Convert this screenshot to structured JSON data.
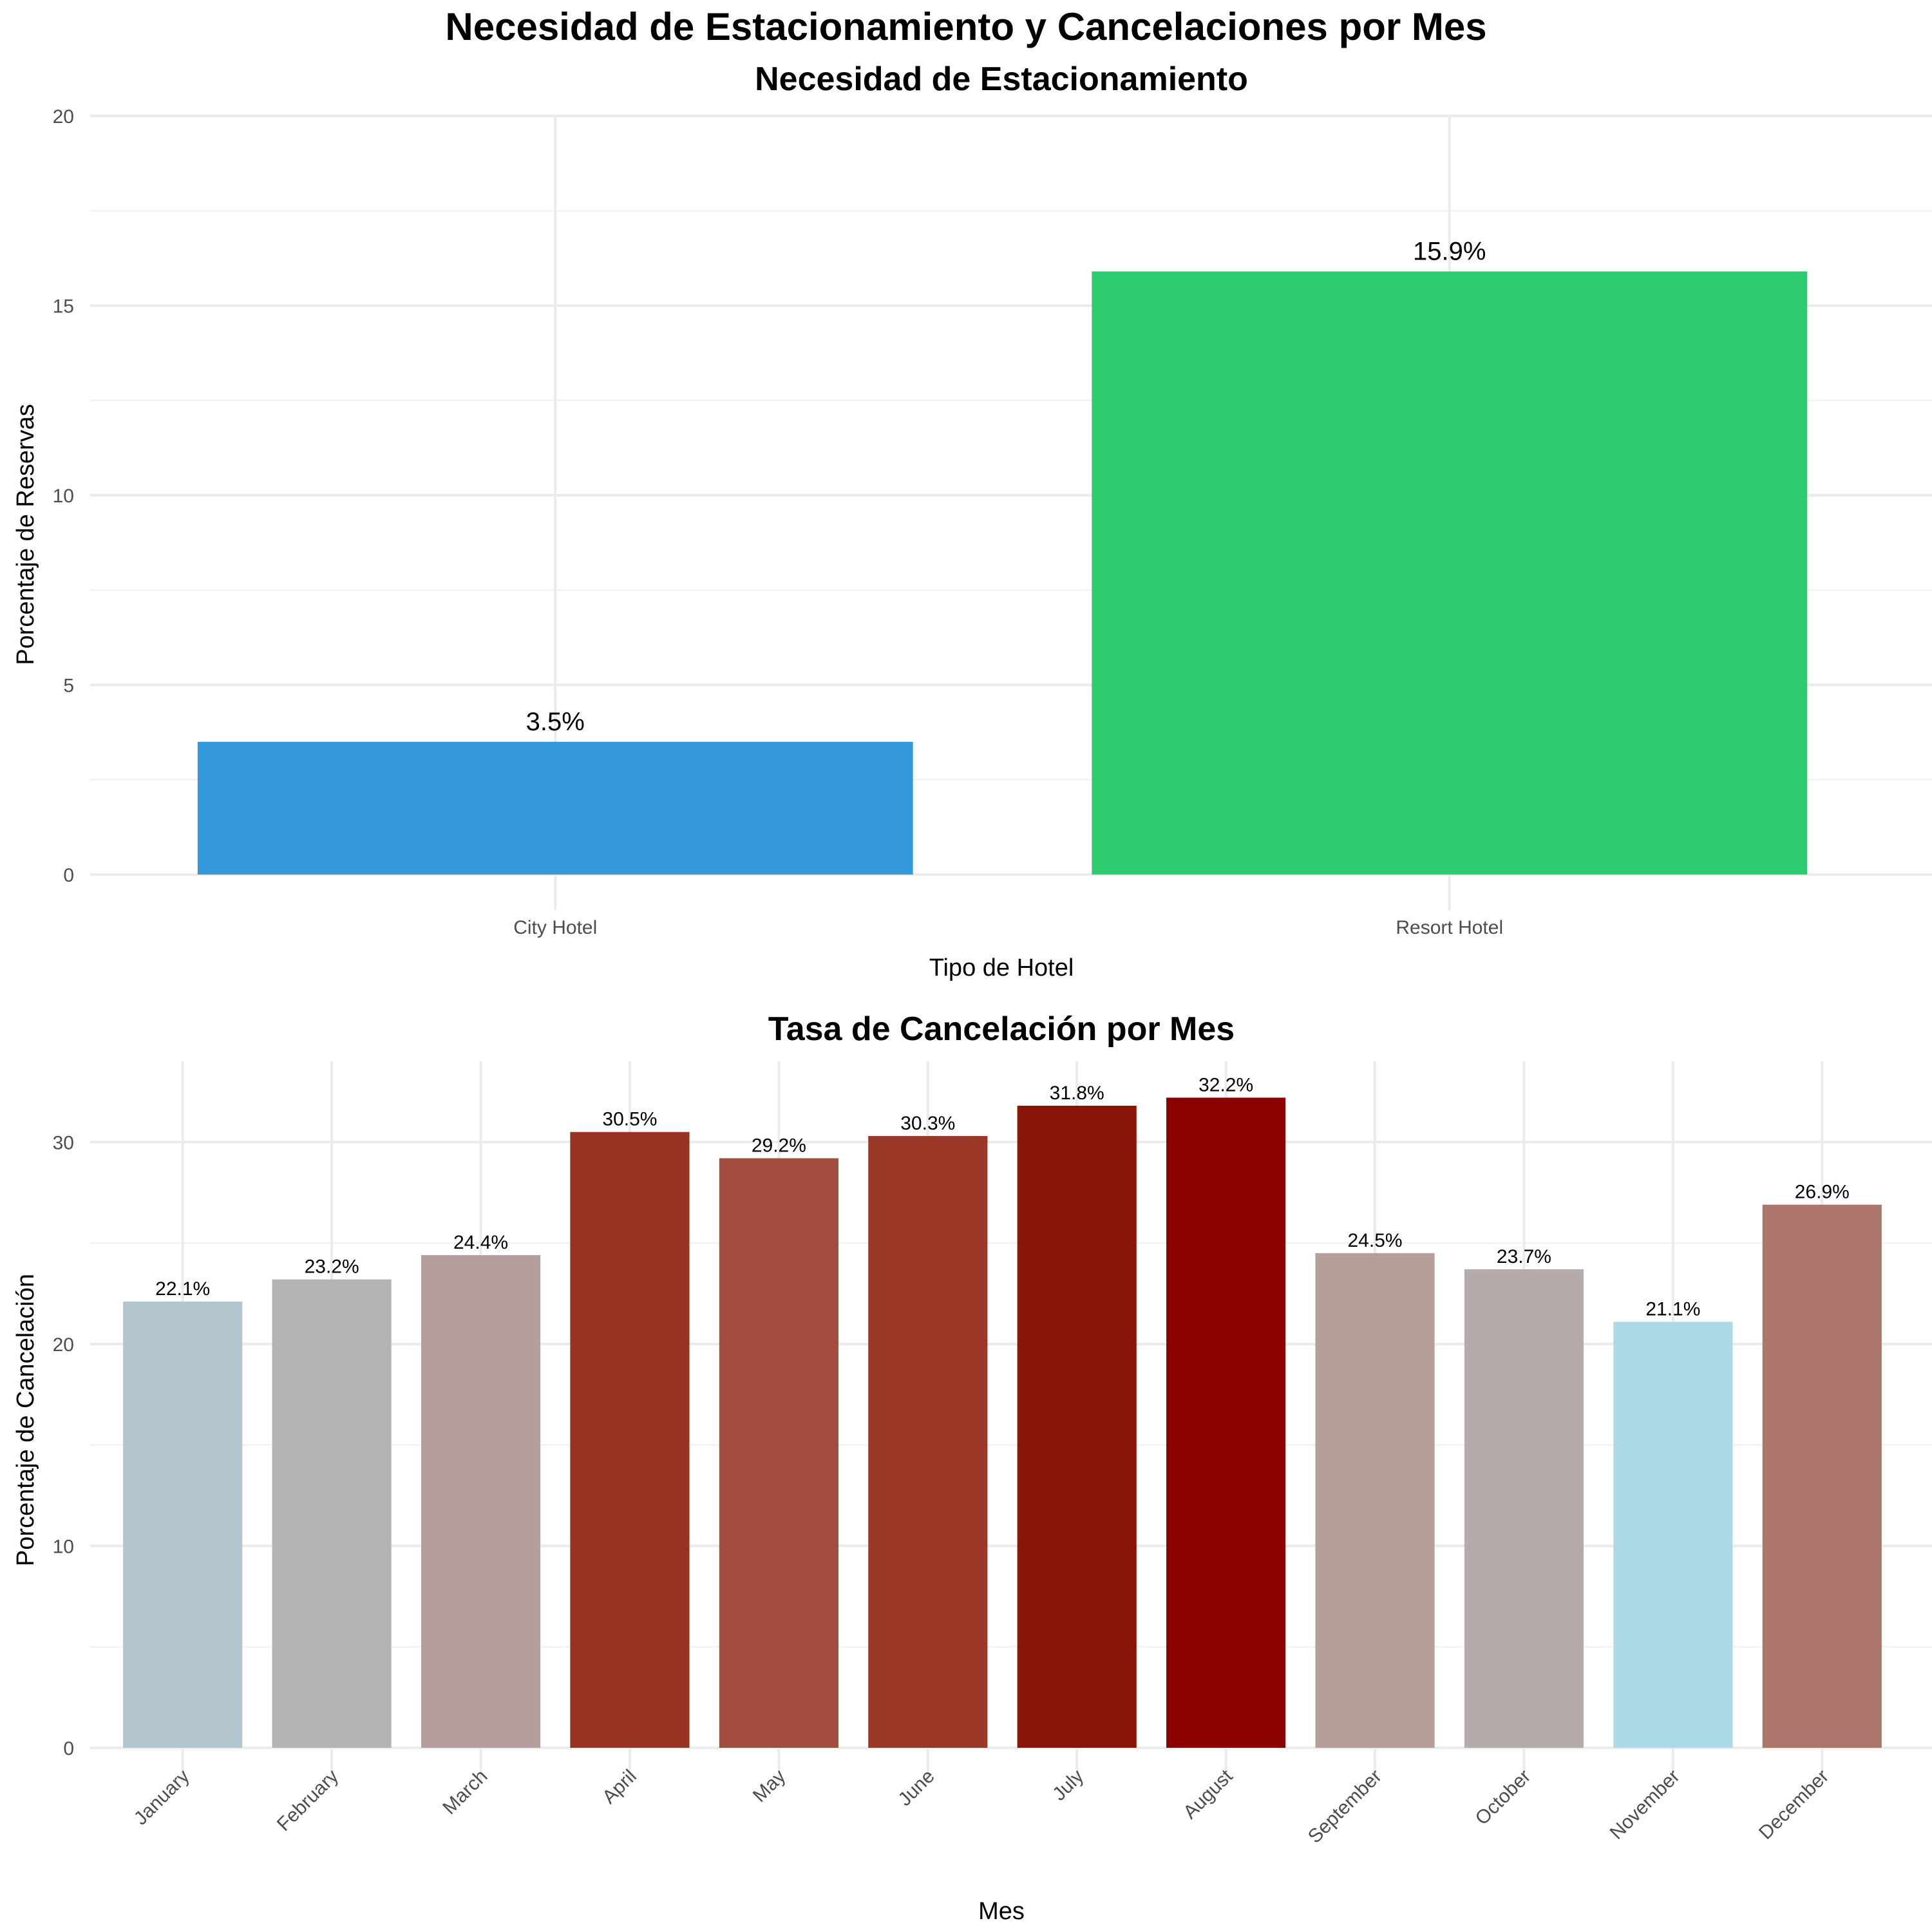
{
  "title": "Necesidad de Estacionamiento y Cancelaciones por Mes",
  "chart_data": [
    {
      "type": "bar",
      "title": "Necesidad de Estacionamiento",
      "xlabel": "Tipo de Hotel",
      "ylabel": "Porcentaje de Reservas",
      "ylim": [
        0,
        20
      ],
      "yticks": [
        0,
        5,
        10,
        15,
        20
      ],
      "grid": true,
      "legend": "none",
      "categories": [
        "City Hotel",
        "Resort Hotel"
      ],
      "values": [
        3.5,
        15.9
      ],
      "labels": [
        "3.5%",
        "15.9%"
      ],
      "colors": [
        "#3498db",
        "#2ecc71"
      ]
    },
    {
      "type": "bar",
      "title": "Tasa de Cancelación por Mes",
      "xlabel": "Mes",
      "ylabel": "Porcentaje de Cancelación",
      "ylim": [
        0,
        34
      ],
      "yticks": [
        0,
        10,
        20,
        30
      ],
      "grid": true,
      "legend": "none",
      "categories": [
        "January",
        "February",
        "March",
        "April",
        "May",
        "June",
        "July",
        "August",
        "September",
        "October",
        "November",
        "December"
      ],
      "values": [
        22.1,
        23.2,
        24.4,
        30.5,
        29.2,
        30.3,
        31.8,
        32.2,
        24.5,
        23.7,
        21.1,
        26.9
      ],
      "labels": [
        "22.1%",
        "23.2%",
        "24.4%",
        "30.5%",
        "29.2%",
        "30.3%",
        "31.8%",
        "32.2%",
        "24.5%",
        "23.7%",
        "21.1%",
        "26.9%"
      ],
      "colors": [
        "#b3c5ce",
        "#b3b3b5",
        "#b49f9e",
        "#983323",
        "#a24d3f",
        "#9b3727",
        "#8b1409",
        "#8b0000",
        "#b69f99",
        "#b6abab",
        "#add8e6",
        "#ad766b"
      ]
    }
  ]
}
